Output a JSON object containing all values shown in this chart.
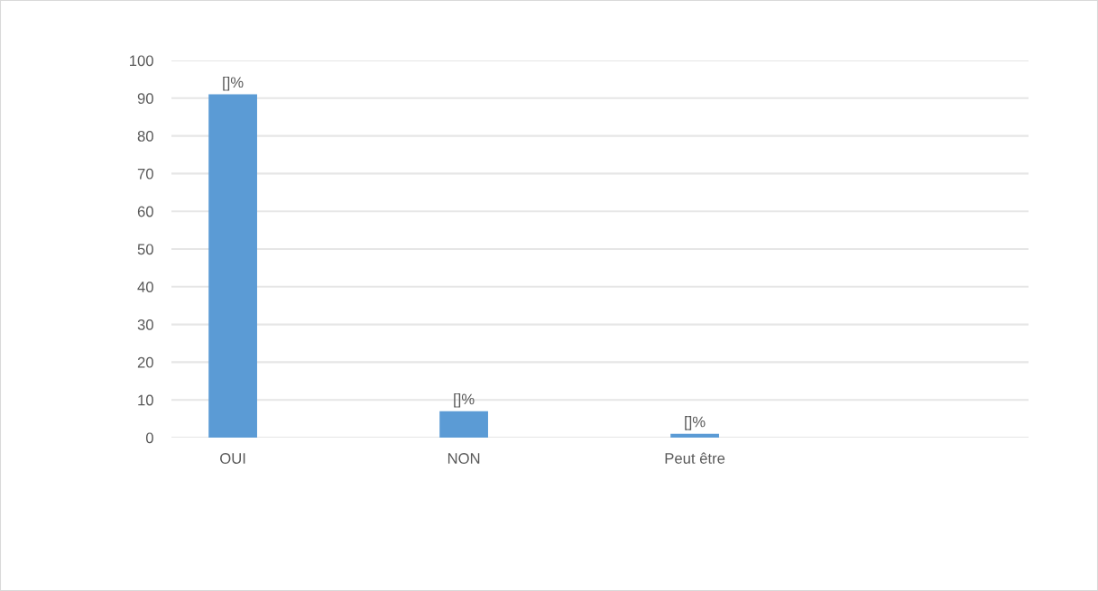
{
  "chart_data": {
    "type": "bar",
    "categories": [
      "OUI",
      "NON",
      "Peut être",
      null
    ],
    "values": [
      91,
      7,
      1,
      null
    ],
    "color": "#5b9bd5",
    "value_labels": [
      "[]%",
      "[]%",
      "[]%",
      null
    ],
    "ylim": [
      0,
      100
    ],
    "yticks": [
      0,
      10,
      20,
      30,
      40,
      50,
      60,
      70,
      80,
      90,
      100
    ],
    "grid": "y",
    "legend": false
  }
}
